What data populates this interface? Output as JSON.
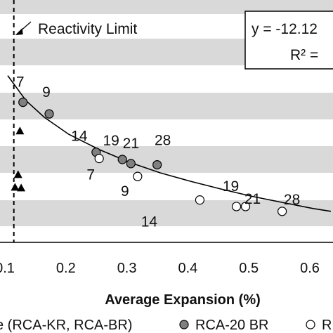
{
  "chart_data": {
    "type": "scatter",
    "xlabel": "Average Expansion (%)",
    "xlim": [
      0.1,
      0.64
    ],
    "ylim": [
      0,
      1
    ],
    "x_ticks": [
      "0.1",
      "0.2",
      "0.3",
      "0.4",
      "0.5",
      "0.6"
    ],
    "x_tick_values": [
      0.1,
      0.2,
      0.3,
      0.4,
      0.5,
      0.6
    ],
    "grid": "alternating horizontal bands",
    "band_color": "#d9d9d9",
    "reactivity_limit": {
      "label": "Reactivity Limit",
      "x": 0.11
    },
    "equation_box": {
      "line1": "y = -12.12",
      "line2": "R² ="
    },
    "series": [
      {
        "name": "RCA-20 BR",
        "marker": "filled-circle",
        "color": "#808080",
        "points": [
          {
            "x": 0.125,
            "y": 0.578,
            "label": "7"
          },
          {
            "x": 0.168,
            "y": 0.53,
            "label": "9"
          },
          {
            "x": 0.245,
            "y": 0.372,
            "label": "14"
          },
          {
            "x": 0.288,
            "y": 0.342,
            "label": "19"
          },
          {
            "x": 0.302,
            "y": 0.325,
            "label": "21"
          },
          {
            "x": 0.345,
            "y": 0.32,
            "label": "28"
          }
        ]
      },
      {
        "name": "",
        "marker": "open-circle",
        "color": "#ffffff",
        "points": [
          {
            "x": 0.25,
            "y": 0.346,
            "label": "7"
          },
          {
            "x": 0.313,
            "y": 0.272,
            "label": "9"
          },
          {
            "x": 0.415,
            "y": 0.175,
            "label": "14"
          },
          {
            "x": 0.475,
            "y": 0.148,
            "label": "19"
          },
          {
            "x": 0.49,
            "y": 0.148,
            "label": "21"
          },
          {
            "x": 0.55,
            "y": 0.128,
            "label": "28"
          }
        ]
      },
      {
        "name": "",
        "marker": "triangle",
        "color": "#000000",
        "points": [
          {
            "x": 0.12,
            "y": 0.46
          },
          {
            "x": 0.117,
            "y": 0.28
          },
          {
            "x": 0.112,
            "y": 0.228
          },
          {
            "x": 0.122,
            "y": 0.225
          }
        ]
      }
    ],
    "trendline": {
      "x": [
        0.1,
        0.13,
        0.16,
        0.2,
        0.25,
        0.3,
        0.35,
        0.4,
        0.45,
        0.5,
        0.55,
        0.6,
        0.63
      ],
      "y": [
        0.688,
        0.585,
        0.516,
        0.446,
        0.383,
        0.33,
        0.287,
        0.252,
        0.22,
        0.19,
        0.165,
        0.14,
        0.128
      ]
    },
    "legend": {
      "position": "bottom",
      "items": [
        {
          "marker": "none",
          "text": "e (RCA-KR, RCA-BR)"
        },
        {
          "marker": "filled-circle",
          "text": "RCA-20 BR"
        },
        {
          "marker": "open-circle",
          "text": "R"
        }
      ]
    }
  }
}
